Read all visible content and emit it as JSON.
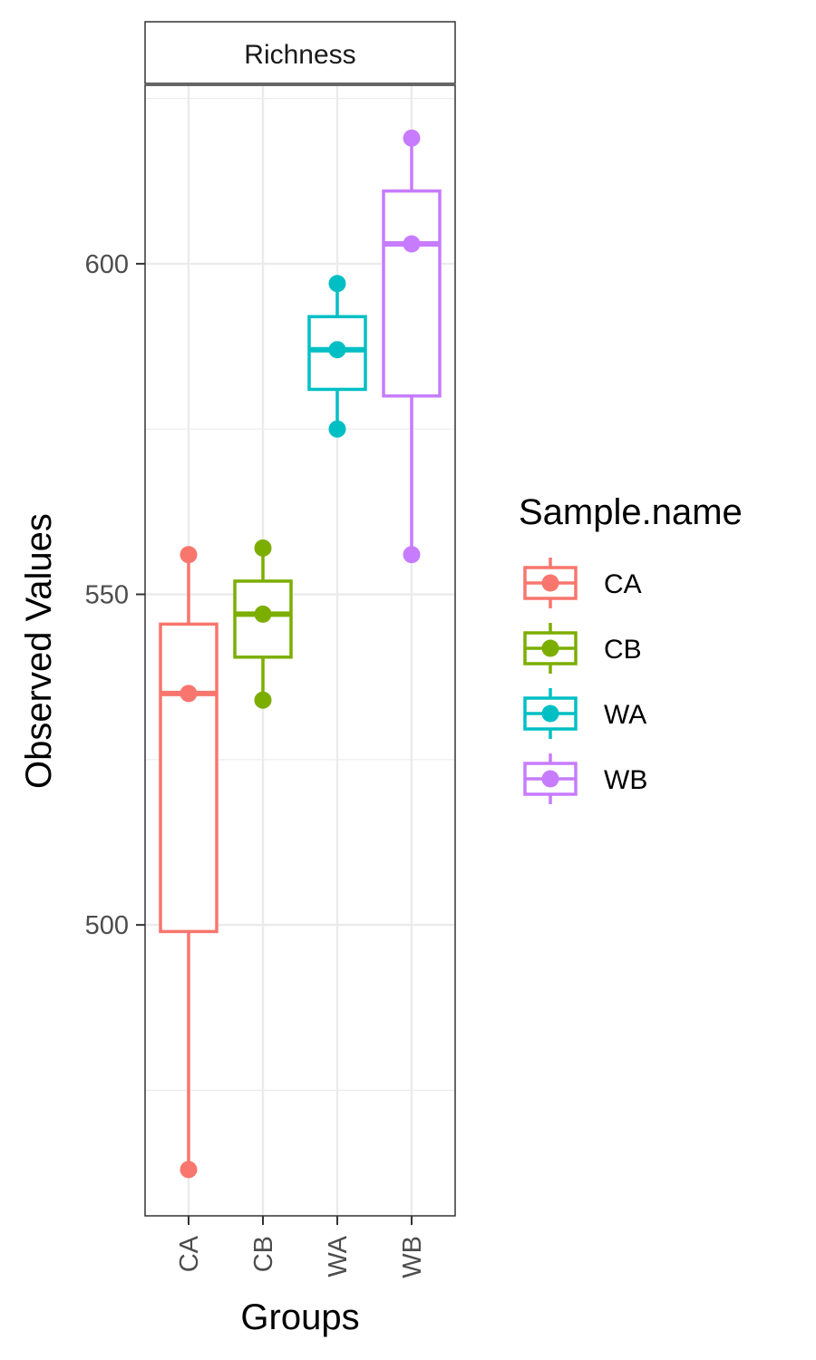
{
  "chart_data": {
    "type": "box",
    "facet_label": "Richness",
    "xlabel": "Groups",
    "ylabel": "Observed Values",
    "categories": [
      "CA",
      "CB",
      "WA",
      "WB"
    ],
    "ylim": [
      456,
      627
    ],
    "yticks": [
      500,
      550,
      600
    ],
    "grid": true,
    "legend": {
      "title": "Sample.name",
      "placement": "right",
      "items": [
        "CA",
        "CB",
        "WA",
        "WB"
      ]
    },
    "colors": {
      "CA": "#F8766D",
      "CB": "#7CAE00",
      "WA": "#00BFC4",
      "WB": "#C77CFF"
    },
    "series": [
      {
        "name": "CA",
        "q1": 499,
        "median": 535,
        "q3": 545.5,
        "whisker_low": 463,
        "whisker_high": 556,
        "points": [
          463,
          535,
          556
        ]
      },
      {
        "name": "CB",
        "q1": 540.5,
        "median": 547,
        "q3": 552,
        "whisker_low": 534,
        "whisker_high": 557,
        "points": [
          534,
          547,
          557
        ]
      },
      {
        "name": "WA",
        "q1": 581,
        "median": 587,
        "q3": 592,
        "whisker_low": 575,
        "whisker_high": 597,
        "points": [
          575,
          587,
          597
        ]
      },
      {
        "name": "WB",
        "q1": 580,
        "median": 603,
        "q3": 611,
        "whisker_low": 556,
        "whisker_high": 619,
        "points": [
          556,
          603,
          619
        ]
      }
    ]
  }
}
